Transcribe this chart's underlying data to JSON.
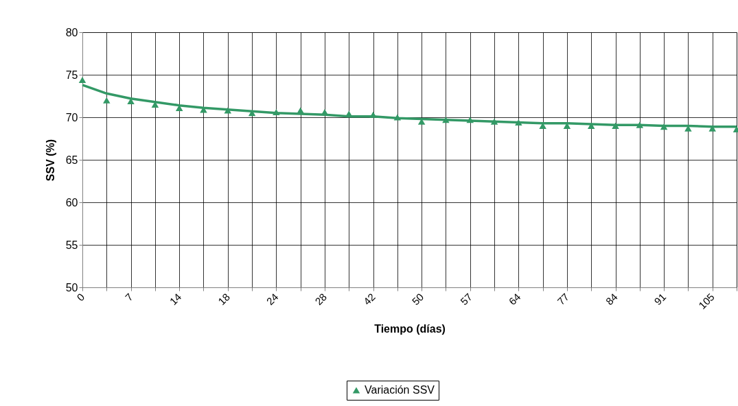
{
  "chart_data": {
    "type": "line",
    "xlabel": "Tiempo (días)",
    "ylabel": "SSV (%)",
    "categories": [
      "0",
      null,
      "7",
      null,
      "14",
      null,
      "18",
      null,
      "24",
      null,
      "28",
      null,
      "42",
      null,
      "50",
      null,
      "57",
      null,
      "64",
      null,
      "77",
      null,
      "84",
      null,
      "91",
      null,
      "105",
      null
    ],
    "ylim": [
      50,
      80
    ],
    "yticks": [
      50,
      55,
      60,
      65,
      70,
      75,
      80
    ],
    "grid": true,
    "legend": "bottom",
    "series": [
      {
        "name": "Variación SSV",
        "type": "scatter",
        "marker": "triangle",
        "color": "#339966",
        "values": [
          74.4,
          72.0,
          71.9,
          71.5,
          71.1,
          70.9,
          70.8,
          70.5,
          70.6,
          70.8,
          70.6,
          70.4,
          70.3,
          70.0,
          69.5,
          69.7,
          69.7,
          69.5,
          69.4,
          69.0,
          69.0,
          69.0,
          69.0,
          69.1,
          68.9,
          68.7,
          68.7,
          68.6
        ]
      },
      {
        "color": "#339966",
        "values": [
          73.8,
          72.8,
          72.2,
          71.8,
          71.4,
          71.1,
          70.9,
          70.7,
          70.5,
          70.4,
          70.3,
          70.1,
          70.1,
          69.9,
          69.8,
          69.7,
          69.6,
          69.5,
          69.4,
          69.3,
          69.3,
          69.2,
          69.1,
          69.1,
          69.0,
          69.0,
          68.9,
          68.9
        ]
      }
    ]
  }
}
